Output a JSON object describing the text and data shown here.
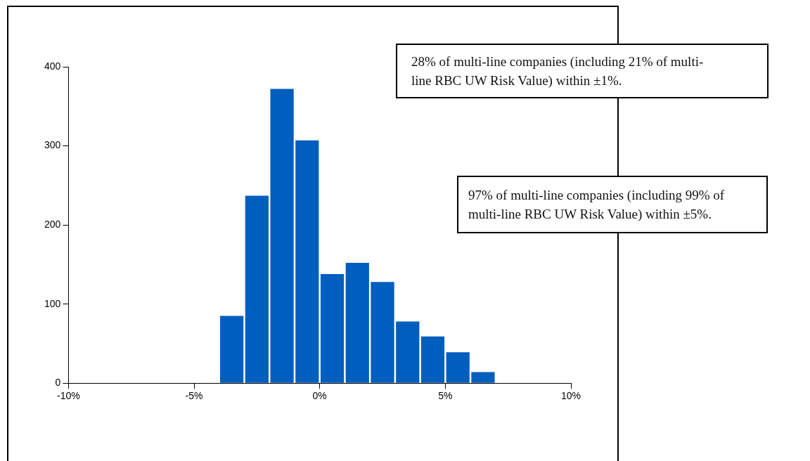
{
  "chart_data": {
    "type": "histogram",
    "bins": [
      -4,
      -3,
      -2,
      -1,
      0,
      1,
      2,
      3,
      4,
      5,
      6,
      7
    ],
    "values": [
      85,
      237,
      372,
      307,
      138,
      152,
      128,
      78,
      59,
      39,
      14
    ],
    "color": "#005ebf",
    "xlim": [
      -10,
      10
    ],
    "xticks": [
      {
        "value": -10,
        "label": "-10%"
      },
      {
        "value": -5,
        "label": "-5%"
      },
      {
        "value": 0,
        "label": "0%"
      },
      {
        "value": 5,
        "label": "5%"
      },
      {
        "value": 10,
        "label": "10%"
      }
    ],
    "ylim": [
      0,
      400
    ],
    "yticks": [
      0,
      100,
      200,
      300,
      400
    ],
    "grid": false,
    "annotations": [
      "28% of multi-line companies (including 21% of multi-line RBC UW Risk Value) within ±1%.",
      "97% of multi-line companies (including 99% of multi-line RBC UW Risk Value) within ±5%."
    ]
  }
}
